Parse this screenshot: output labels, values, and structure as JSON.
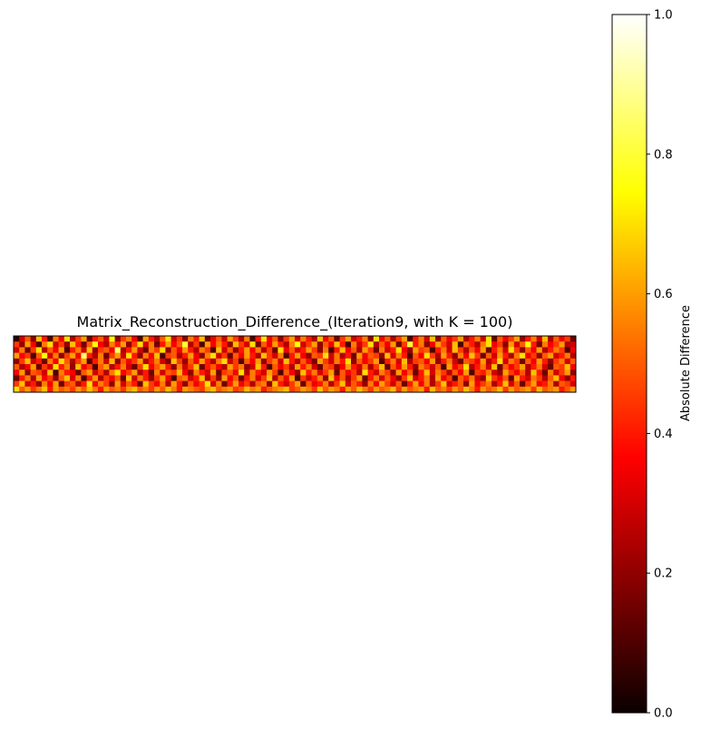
{
  "chart_data": {
    "type": "heatmap",
    "title": "Matrix_Reconstruction_Difference_(Iteration9, with K = 100)",
    "rows": 10,
    "cols": 100,
    "colormap": "hot",
    "colorbar": {
      "label": "Absolute Difference",
      "range": [
        0.0,
        1.0
      ],
      "ticks": [
        "0.0",
        "0.2",
        "0.4",
        "0.6",
        "0.8",
        "1.0"
      ]
    },
    "axes_visible": false,
    "values": [
      [
        0.05,
        0.3,
        0.5,
        0.2,
        0.65,
        0.4,
        0.1,
        0.55,
        0.35,
        0.7,
        0.25,
        0.45,
        0.6,
        0.15,
        0.4,
        0.5,
        0.3,
        0.75,
        0.2,
        0.45,
        0.55,
        0.35,
        0.1,
        0.6,
        0.4,
        0.25,
        0.5,
        0.7,
        0.3,
        0.45,
        0.2,
        0.55,
        0.4,
        0.65,
        0.15,
        0.35,
        0.5,
        0.3,
        0.6,
        0.45,
        0.25,
        0.55,
        0.1,
        0.4,
        0.7,
        0.35,
        0.5,
        0.2,
        0.45,
        0.6,
        0.3,
        0.55,
        0.4,
        0.25,
        0.65,
        0.35,
        0.5,
        0.15,
        0.45,
        0.6,
        0.3,
        0.4,
        0.55,
        0.2,
        0.7,
        0.35,
        0.5,
        0.25,
        0.45,
        0.6,
        0.1,
        0.4,
        0.55,
        0.3,
        0.65,
        0.2,
        0.5,
        0.35,
        0.45,
        0.6,
        0.25,
        0.4,
        0.55,
        0.3,
        0.7,
        0.15,
        0.5,
        0.35,
        0.45,
        0.6,
        0.2,
        0.4,
        0.55,
        0.3,
        0.65,
        0.25,
        0.5,
        0.35,
        0.45,
        0.15
      ],
      [
        0.45,
        0.2,
        0.6,
        0.35,
        0.1,
        0.55,
        0.7,
        0.3,
        0.45,
        0.2,
        0.65,
        0.4,
        0.15,
        0.5,
        0.75,
        0.35,
        0.25,
        0.55,
        0.4,
        0.6,
        0.2,
        0.45,
        0.7,
        0.3,
        0.55,
        0.15,
        0.4,
        0.6,
        0.35,
        0.5,
        0.8,
        0.25,
        0.45,
        0.1,
        0.6,
        0.35,
        0.55,
        0.4,
        0.2,
        0.65,
        0.45,
        0.3,
        0.7,
        0.15,
        0.5,
        0.35,
        0.6,
        0.4,
        0.25,
        0.55,
        0.75,
        0.3,
        0.45,
        0.6,
        0.2,
        0.5,
        0.35,
        0.65,
        0.4,
        0.1,
        0.55,
        0.3,
        0.45,
        0.7,
        0.25,
        0.5,
        0.35,
        0.6,
        0.15,
        0.45,
        0.8,
        0.4,
        0.55,
        0.2,
        0.35,
        0.6,
        0.45,
        0.3,
        0.65,
        0.1,
        0.5,
        0.4,
        0.25,
        0.55,
        0.7,
        0.35,
        0.45,
        0.2,
        0.6,
        0.3,
        0.5,
        0.75,
        0.4,
        0.15,
        0.55,
        0.35,
        0.45,
        0.6,
        0.25,
        0.3
      ],
      [
        0.3,
        0.55,
        0.15,
        0.45,
        0.7,
        0.25,
        0.5,
        0.35,
        0.6,
        0.1,
        0.4,
        0.55,
        0.3,
        0.65,
        0.2,
        0.45,
        0.5,
        0.35,
        0.85,
        0.25,
        0.4,
        0.6,
        0.3,
        0.15,
        0.55,
        0.45,
        0.7,
        0.2,
        0.5,
        0.35,
        0.6,
        0.4,
        0.25,
        0.55,
        0.45,
        0.1,
        0.65,
        0.3,
        0.5,
        0.2,
        0.4,
        0.6,
        0.35,
        0.55,
        0.25,
        0.45,
        0.15,
        0.7,
        0.35,
        0.5,
        0.3,
        0.4,
        0.6,
        0.45,
        0.2,
        0.55,
        0.1,
        0.4,
        0.65,
        0.35,
        0.5,
        0.25,
        0.6,
        0.45,
        0.15,
        0.55,
        0.3,
        0.4,
        0.7,
        0.35,
        0.2,
        0.6,
        0.45,
        0.5,
        0.1,
        0.4,
        0.55,
        0.3,
        0.65,
        0.45,
        0.25,
        0.5,
        0.35,
        0.6,
        0.15,
        0.4,
        0.55,
        0.3,
        0.7,
        0.45,
        0.2,
        0.5,
        0.35,
        0.6,
        0.25,
        0.4,
        0.55,
        0.45,
        0.1,
        0.35
      ],
      [
        0.6,
        0.35,
        0.45,
        0.1,
        0.5,
        0.75,
        0.3,
        0.55,
        0.2,
        0.45,
        0.6,
        0.35,
        0.85,
        0.4,
        0.25,
        0.55,
        0.15,
        0.45,
        0.6,
        0.3,
        0.7,
        0.4,
        0.2,
        0.55,
        0.35,
        0.65,
        0.1,
        0.45,
        0.5,
        0.25,
        0.4,
        0.6,
        0.35,
        0.2,
        0.55,
        0.7,
        0.3,
        0.45,
        0.15,
        0.5,
        0.35,
        0.6,
        0.4,
        0.25,
        0.65,
        0.45,
        0.3,
        0.55,
        0.1,
        0.4,
        0.6,
        0.35,
        0.2,
        0.5,
        0.45,
        0.7,
        0.3,
        0.55,
        0.25,
        0.4,
        0.15,
        0.6,
        0.35,
        0.5,
        0.45,
        0.2,
        0.65,
        0.3,
        0.55,
        0.4,
        0.1,
        0.5,
        0.35,
        0.7,
        0.45,
        0.25,
        0.6,
        0.4,
        0.2,
        0.55,
        0.35,
        0.65,
        0.45,
        0.15,
        0.5,
        0.3,
        0.6,
        0.4,
        0.25,
        0.55,
        0.7,
        0.35,
        0.45,
        0.2,
        0.5,
        0.6,
        0.3,
        0.4,
        0.55,
        0.25
      ],
      [
        0.2,
        0.45,
        0.65,
        0.3,
        0.4,
        0.15,
        0.55,
        0.35,
        0.7,
        0.5,
        0.25,
        0.45,
        0.6,
        0.1,
        0.4,
        0.55,
        0.3,
        0.65,
        0.2,
        0.5,
        0.35,
        0.45,
        0.6,
        0.25,
        0.4,
        0.55,
        0.3,
        0.15,
        0.65,
        0.45,
        0.2,
        0.5,
        0.35,
        0.6,
        0.4,
        0.25,
        0.55,
        0.7,
        0.3,
        0.45,
        0.1,
        0.5,
        0.35,
        0.6,
        0.2,
        0.45,
        0.55,
        0.3,
        0.65,
        0.4,
        0.25,
        0.5,
        0.35,
        0.15,
        0.6,
        0.45,
        0.3,
        0.55,
        0.4,
        0.7,
        0.2,
        0.5,
        0.35,
        0.45,
        0.6,
        0.1,
        0.4,
        0.55,
        0.3,
        0.65,
        0.25,
        0.45,
        0.5,
        0.35,
        0.6,
        0.2,
        0.4,
        0.55,
        0.3,
        0.15,
        0.5,
        0.45,
        0.35,
        0.6,
        0.25,
        0.4,
        0.7,
        0.3,
        0.55,
        0.45,
        0.15,
        0.5,
        0.35,
        0.6,
        0.4,
        0.2,
        0.45,
        0.55,
        0.3,
        0.5
      ],
      [
        0.5,
        0.25,
        0.35,
        0.6,
        0.15,
        0.45,
        0.3,
        0.7,
        0.4,
        0.55,
        0.2,
        0.65,
        0.35,
        0.45,
        0.1,
        0.5,
        0.6,
        0.25,
        0.4,
        0.55,
        0.3,
        0.15,
        0.45,
        0.7,
        0.35,
        0.5,
        0.6,
        0.4,
        0.2,
        0.55,
        0.3,
        0.45,
        0.65,
        0.15,
        0.4,
        0.5,
        0.35,
        0.25,
        0.6,
        0.45,
        0.55,
        0.2,
        0.3,
        0.65,
        0.4,
        0.1,
        0.5,
        0.35,
        0.45,
        0.25,
        0.6,
        0.4,
        0.55,
        0.3,
        0.15,
        0.5,
        0.45,
        0.2,
        0.35,
        0.6,
        0.4,
        0.3,
        0.55,
        0.25,
        0.45,
        0.65,
        0.15,
        0.5,
        0.35,
        0.6,
        0.4,
        0.2,
        0.55,
        0.45,
        0.3,
        0.5,
        0.1,
        0.6,
        0.35,
        0.45,
        0.7,
        0.25,
        0.4,
        0.55,
        0.3,
        0.65,
        0.15,
        0.5,
        0.35,
        0.45,
        0.6,
        0.25,
        0.4,
        0.55,
        0.3,
        0.15,
        0.5,
        0.45,
        0.65,
        0.35
      ],
      [
        0.35,
        0.6,
        0.2,
        0.5,
        0.45,
        0.3,
        0.65,
        0.1,
        0.55,
        0.4,
        0.35,
        0.15,
        0.5,
        0.6,
        0.3,
        0.45,
        0.25,
        0.55,
        0.7,
        0.35,
        0.45,
        0.6,
        0.25,
        0.4,
        0.15,
        0.55,
        0.3,
        0.5,
        0.45,
        0.65,
        0.35,
        0.2,
        0.55,
        0.4,
        0.3,
        0.6,
        0.15,
        0.45,
        0.5,
        0.35,
        0.7,
        0.25,
        0.55,
        0.4,
        0.3,
        0.6,
        0.45,
        0.1,
        0.5,
        0.35,
        0.2,
        0.65,
        0.4,
        0.55,
        0.3,
        0.45,
        0.6,
        0.15,
        0.5,
        0.35,
        0.45,
        0.25,
        0.7,
        0.4,
        0.3,
        0.55,
        0.45,
        0.2,
        0.6,
        0.35,
        0.5,
        0.15,
        0.4,
        0.65,
        0.3,
        0.55,
        0.45,
        0.25,
        0.5,
        0.35,
        0.6,
        0.1,
        0.45,
        0.4,
        0.55,
        0.3,
        0.2,
        0.6,
        0.45,
        0.35,
        0.5,
        0.25,
        0.65,
        0.4,
        0.15,
        0.55,
        0.3,
        0.45,
        0.6,
        0.2
      ],
      [
        0.15,
        0.4,
        0.55,
        0.25,
        0.6,
        0.35,
        0.45,
        0.2,
        0.5,
        0.65,
        0.3,
        0.55,
        0.1,
        0.4,
        0.6,
        0.25,
        0.45,
        0.35,
        0.5,
        0.15,
        0.65,
        0.3,
        0.55,
        0.4,
        0.2,
        0.45,
        0.6,
        0.35,
        0.1,
        0.5,
        0.55,
        0.3,
        0.4,
        0.65,
        0.25,
        0.45,
        0.2,
        0.6,
        0.35,
        0.5,
        0.15,
        0.4,
        0.55,
        0.3,
        0.45,
        0.65,
        0.25,
        0.5,
        0.35,
        0.6,
        0.1,
        0.45,
        0.3,
        0.4,
        0.55,
        0.2,
        0.65,
        0.35,
        0.5,
        0.25,
        0.45,
        0.6,
        0.15,
        0.4,
        0.55,
        0.3,
        0.5,
        0.35,
        0.2,
        0.45,
        0.65,
        0.3,
        0.4,
        0.55,
        0.25,
        0.6,
        0.35,
        0.45,
        0.1,
        0.5,
        0.4,
        0.55,
        0.3,
        0.2,
        0.65,
        0.45,
        0.35,
        0.5,
        0.15,
        0.6,
        0.4,
        0.3,
        0.55,
        0.45,
        0.25,
        0.5,
        0.65,
        0.35,
        0.2,
        0.4
      ],
      [
        0.45,
        0.65,
        0.3,
        0.4,
        0.2,
        0.55,
        0.35,
        0.6,
        0.15,
        0.45,
        0.5,
        0.25,
        0.4,
        0.7,
        0.35,
        0.55,
        0.45,
        0.2,
        0.6,
        0.3,
        0.5,
        0.4,
        0.15,
        0.65,
        0.45,
        0.35,
        0.55,
        0.25,
        0.6,
        0.4,
        0.2,
        0.5,
        0.35,
        0.45,
        0.7,
        0.3,
        0.55,
        0.15,
        0.4,
        0.6,
        0.35,
        0.45,
        0.25,
        0.5,
        0.55,
        0.2,
        0.65,
        0.4,
        0.3,
        0.45,
        0.6,
        0.15,
        0.5,
        0.35,
        0.4,
        0.55,
        0.25,
        0.45,
        0.65,
        0.3,
        0.5,
        0.4,
        0.2,
        0.55,
        0.35,
        0.6,
        0.45,
        0.3,
        0.5,
        0.15,
        0.4,
        0.6,
        0.35,
        0.55,
        0.25,
        0.45,
        0.65,
        0.3,
        0.4,
        0.5,
        0.2,
        0.6,
        0.35,
        0.45,
        0.55,
        0.25,
        0.4,
        0.65,
        0.3,
        0.5,
        0.15,
        0.45,
        0.6,
        0.35,
        0.4,
        0.55,
        0.25,
        0.5,
        0.45,
        0.3
      ],
      [
        0.7,
        0.5,
        0.6,
        0.45,
        0.55,
        0.65,
        0.4,
        0.6,
        0.5,
        0.55,
        0.45,
        0.6,
        0.5,
        0.65,
        0.55,
        0.4,
        0.6,
        0.5,
        0.55,
        0.45,
        0.6,
        0.65,
        0.5,
        0.55,
        0.45,
        0.6,
        0.5,
        0.65,
        0.55,
        0.4,
        0.6,
        0.55,
        0.5,
        0.45,
        0.6,
        0.65,
        0.5,
        0.55,
        0.6,
        0.45,
        0.5,
        0.65,
        0.55,
        0.6,
        0.4,
        0.5,
        0.55,
        0.6,
        0.65,
        0.45,
        0.5,
        0.6,
        0.55,
        0.45,
        0.65,
        0.5,
        0.6,
        0.55,
        0.4,
        0.6,
        0.5,
        0.65,
        0.55,
        0.45,
        0.6,
        0.5,
        0.55,
        0.65,
        0.45,
        0.6,
        0.5,
        0.55,
        0.6,
        0.4,
        0.65,
        0.5,
        0.55,
        0.45,
        0.6,
        0.5,
        0.65,
        0.55,
        0.4,
        0.6,
        0.5,
        0.55,
        0.65,
        0.45,
        0.6,
        0.5,
        0.55,
        0.6,
        0.45,
        0.65,
        0.5,
        0.55,
        0.6,
        0.4,
        0.5,
        0.6
      ]
    ]
  }
}
